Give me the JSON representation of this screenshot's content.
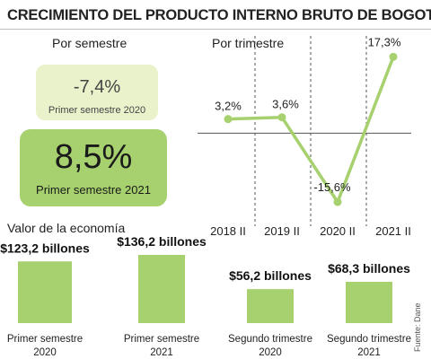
{
  "title": "CRECIMIENTO DEL PRODUCTO INTERNO BRUTO DE BOGOTÁ",
  "labels": {
    "semester": "Por semestre",
    "trimester": "Por trimestre",
    "economy": "Valor de la economía"
  },
  "semester_cards": [
    {
      "value": "-7,4%",
      "caption": "Primer semestre 2020"
    },
    {
      "value": "8,5%",
      "caption": "Primer semestre 2021"
    }
  ],
  "source": "Fuente: Dane",
  "colors": {
    "accent": "#a6d16e",
    "pale": "#eaf2cc",
    "grid": "#555555"
  },
  "chart_data": [
    {
      "type": "line",
      "x": [
        "2018 II",
        "2019 II",
        "2020 II",
        "2021 II"
      ],
      "series": [
        {
          "values": [
            3.2,
            3.6,
            -15.6,
            17.3
          ],
          "labels": [
            "3,2%",
            "3,6%",
            "-15,6%",
            "17,3%"
          ]
        }
      ],
      "ylim": [
        -17,
        19
      ],
      "baseline": 0,
      "grid": "vertical dashed separators"
    },
    {
      "type": "bar",
      "categories": [
        [
          "Primer semestre",
          "2020"
        ],
        [
          "Primer semestre",
          "2021"
        ],
        [
          "Segundo trimestre",
          "2020"
        ],
        [
          "Segundo trimestre",
          "2021"
        ]
      ],
      "values": [
        123.2,
        136.2,
        56.2,
        68.3
      ],
      "labels": [
        "$123,2 billones",
        "$136,2 billones",
        "$56,2 billones",
        "$68,3 billones"
      ],
      "group_note": "semester and trimester bars use separate scales"
    }
  ]
}
